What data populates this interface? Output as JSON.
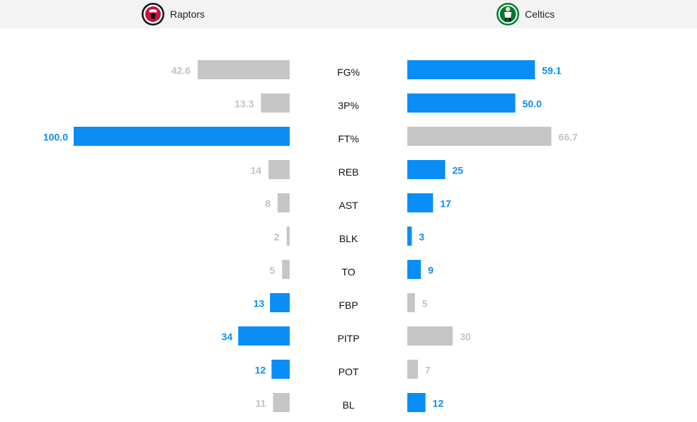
{
  "teams": {
    "left": {
      "name": "Raptors",
      "logo_icon": "raptors-logo-icon"
    },
    "right": {
      "name": "Celtics",
      "logo_icon": "celtics-logo-icon"
    }
  },
  "colors": {
    "highlight": "#0a8ef6",
    "muted": "#c6c6c6",
    "muted_text": "#c3c3c3"
  },
  "chart_data": {
    "type": "bar",
    "orientation": "horizontal-diverging",
    "categories": [
      "FG%",
      "3P%",
      "FT%",
      "REB",
      "AST",
      "BLK",
      "TO",
      "FBP",
      "PITP",
      "POT",
      "BL"
    ],
    "series": [
      {
        "name": "Raptors",
        "values": [
          42.6,
          13.3,
          100.0,
          14,
          8,
          2,
          5,
          13,
          34,
          12,
          11
        ],
        "labels": [
          "42.6",
          "13.3",
          "100.0",
          "14",
          "8",
          "2",
          "5",
          "13",
          "34",
          "12",
          "11"
        ],
        "highlighted": [
          false,
          false,
          true,
          false,
          false,
          false,
          false,
          true,
          true,
          true,
          false
        ]
      },
      {
        "name": "Celtics",
        "values": [
          59.1,
          50.0,
          66.7,
          25,
          17,
          3,
          9,
          5,
          30,
          7,
          12
        ],
        "labels": [
          "59.1",
          "50.0",
          "66.7",
          "25",
          "17",
          "3",
          "9",
          "5",
          "30",
          "7",
          "12"
        ],
        "highlighted": [
          true,
          true,
          false,
          true,
          true,
          true,
          true,
          false,
          false,
          false,
          true
        ]
      }
    ],
    "legend": "header",
    "grid": false
  }
}
